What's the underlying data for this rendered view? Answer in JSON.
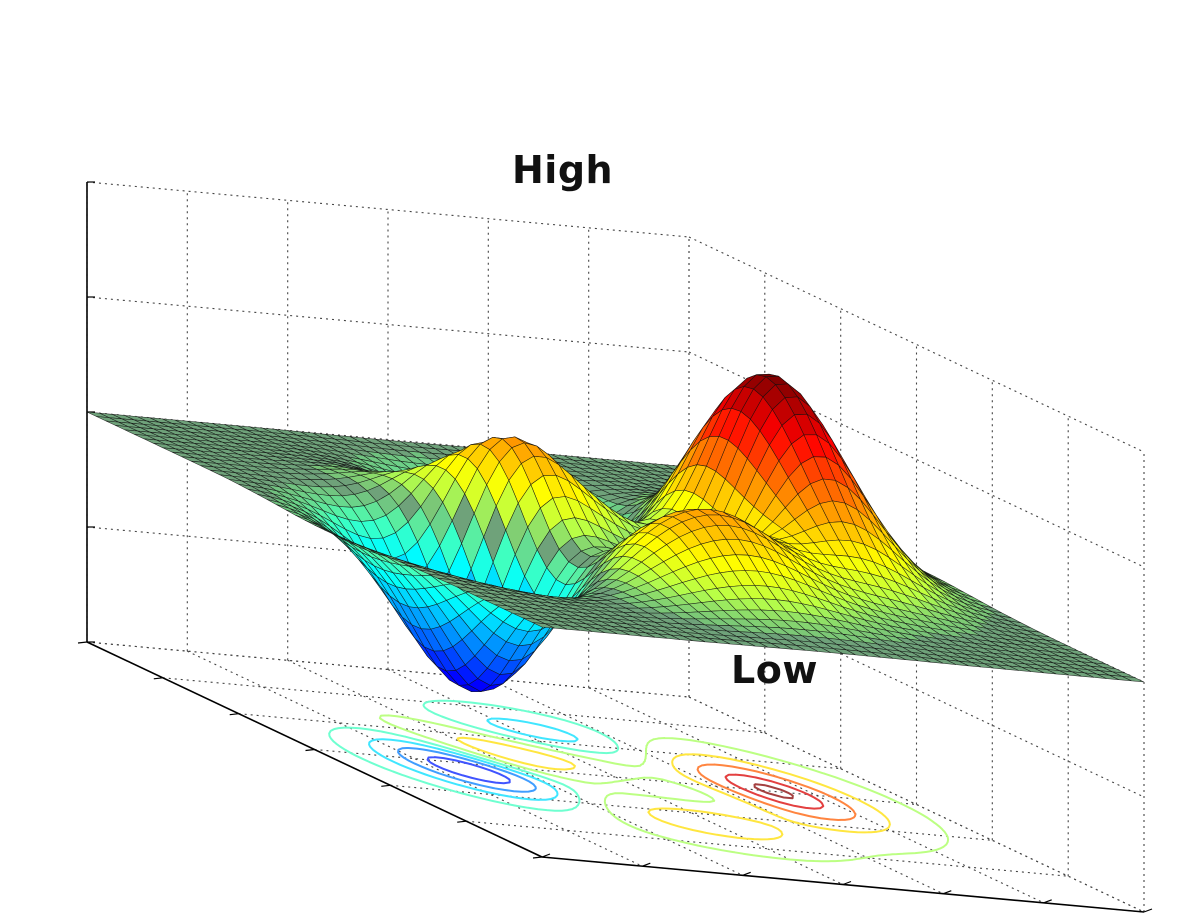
{
  "chart_data": {
    "type": "surface3d",
    "function": "peaks",
    "x_range": [
      -3,
      3
    ],
    "y_range": [
      -3,
      3
    ],
    "z_range": [
      -10,
      10
    ],
    "grid": true,
    "contours_on_floor": true,
    "colormap": "jet",
    "colors": {
      "base_plane": "#6fa27a",
      "mesh": "#111111",
      "contour_high": "#e8d060",
      "contour_low": "#3a7fa8"
    },
    "annotations": [
      {
        "id": "high",
        "text": "High",
        "x": 0,
        "y": 1.6,
        "z": 8.1
      },
      {
        "id": "low",
        "text": "Low",
        "x": 0.2,
        "y": -1.6,
        "z": -6.5
      }
    ]
  }
}
